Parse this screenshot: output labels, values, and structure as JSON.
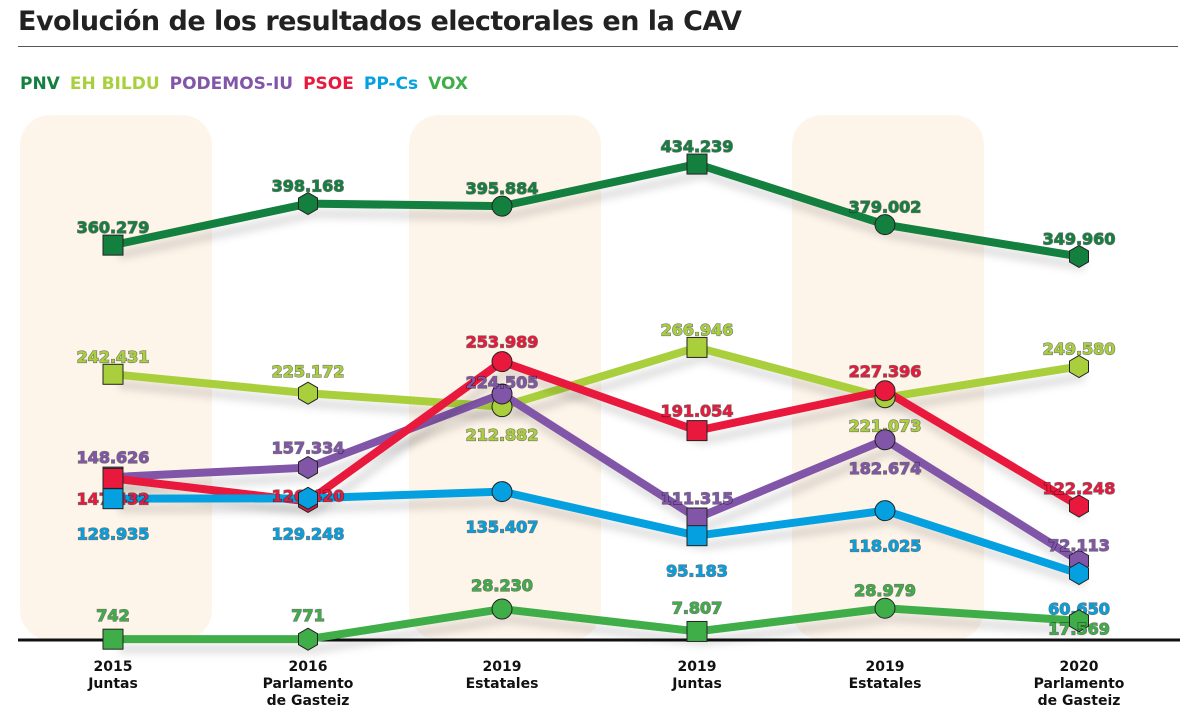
{
  "title": "Evolución de los resultados electorales en la CAV",
  "chart_data": {
    "type": "line",
    "title": "Evolución de los resultados electorales en la CAV",
    "categories": [
      [
        "2015",
        "Juntas"
      ],
      [
        "2016",
        "Parlamento",
        "de Gasteiz"
      ],
      [
        "2019",
        "Estatales"
      ],
      [
        "2019",
        "Juntas"
      ],
      [
        "2019",
        "Estatales"
      ],
      [
        "2020",
        "Parlamento",
        "de Gasteiz"
      ]
    ],
    "marker_by_election_type": {
      "Juntas": "square",
      "Parlamento": "hexagon",
      "Estatales": "circle"
    },
    "legend_placement": "top-left",
    "grid": false,
    "series": [
      {
        "name": "PNV",
        "color": "#13803f",
        "values": [
          360279,
          398168,
          395884,
          434239,
          379002,
          349960
        ],
        "labels": [
          "360.279",
          "398.168",
          "395.884",
          "434.239",
          "379.002",
          "349.960"
        ]
      },
      {
        "name": "EH BILDU",
        "color": "#a9d03c",
        "values": [
          242431,
          225172,
          212882,
          266946,
          221073,
          249580
        ],
        "labels": [
          "242.431",
          "225.172",
          "212.882",
          "266.946",
          "221.073",
          "249.580"
        ]
      },
      {
        "name": "PODEMOS-IU",
        "color": "#8156a8",
        "values": [
          148626,
          157334,
          224505,
          111315,
          182674,
          72113
        ],
        "labels": [
          "148.626",
          "157.334",
          "224.505",
          "111.315",
          "182.674",
          "72.113"
        ]
      },
      {
        "name": "PSOE",
        "color": "#e8193c",
        "values": [
          147432,
          126420,
          253989,
          191054,
          227396,
          122248
        ],
        "labels": [
          "147.432",
          "126.420",
          "253.989",
          "191.054",
          "227.396",
          "122.248"
        ]
      },
      {
        "name": "PP-Cs",
        "color": "#04a0e0",
        "values": [
          128935,
          129248,
          135407,
          95183,
          118025,
          60650
        ],
        "labels": [
          "128.935",
          "129.248",
          "135.407",
          "95.183",
          "118.025",
          "60.650"
        ]
      },
      {
        "name": "VOX",
        "color": "#3fae49",
        "values": [
          742,
          771,
          28230,
          7807,
          28979,
          17569
        ],
        "labels": [
          "742",
          "771",
          "28.230",
          "7.807",
          "28.979",
          "17.569"
        ]
      }
    ]
  }
}
